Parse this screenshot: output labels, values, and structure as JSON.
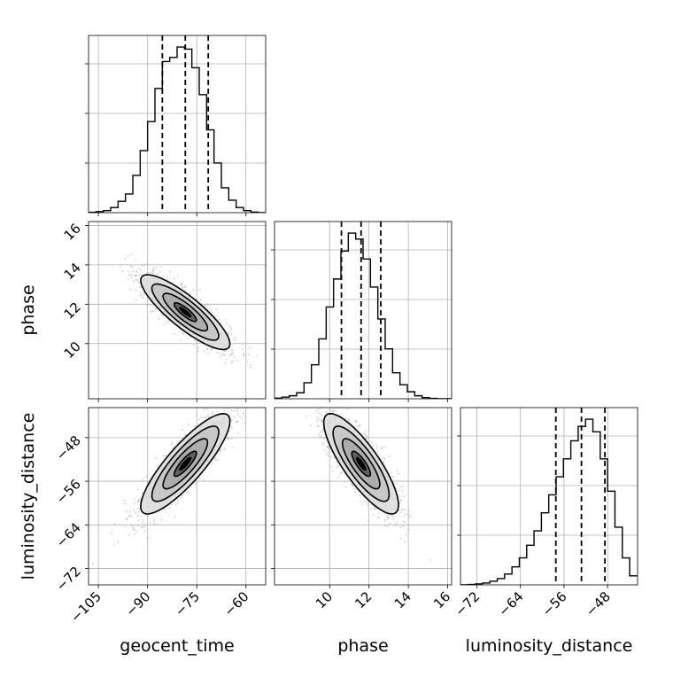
{
  "chart_data": {
    "type": "corner",
    "parameters": [
      "geocent_time",
      "phase",
      "luminosity_distance"
    ],
    "axis_labels": {
      "geocent_time": "geocent_time",
      "phase": "phase",
      "luminosity_distance": "luminosity_distance"
    },
    "ranges": {
      "geocent_time": [
        -108,
        -54
      ],
      "phase": [
        7.2,
        16.2
      ],
      "luminosity_distance": [
        -75,
        -42.5
      ]
    },
    "ticks": {
      "geocent_time": {
        "values": [
          -105,
          -90,
          -75,
          -60
        ],
        "labels": [
          "−105",
          "−90",
          "−75",
          "−60"
        ]
      },
      "phase": {
        "values": [
          10,
          12,
          14,
          16
        ],
        "labels": [
          "10",
          "12",
          "14",
          "16"
        ]
      },
      "luminosity_distance": {
        "values": [
          -72,
          -64,
          -56,
          -48
        ],
        "labels": [
          "−72",
          "−64",
          "−56",
          "−48"
        ]
      }
    },
    "grid": true,
    "histograms": {
      "geocent_time": {
        "bin_edges": [
          -108,
          -105.75,
          -103.5,
          -101.25,
          -99,
          -96.75,
          -94.5,
          -92.25,
          -90,
          -87.75,
          -85.5,
          -83.25,
          -81,
          -78.75,
          -76.5,
          -74.25,
          -72,
          -69.75,
          -67.5,
          -65.25,
          -63,
          -60.75,
          -58.5,
          -56.25,
          -54
        ],
        "counts": [
          0.2,
          0.5,
          1,
          2.5,
          5.5,
          9,
          18,
          30,
          44,
          60,
          73,
          75,
          80,
          79,
          70,
          57,
          40,
          24,
          12,
          6,
          2.5,
          1,
          0.3,
          0
        ],
        "quantiles": [
          -85.5,
          -78.5,
          -71.5
        ]
      },
      "phase": {
        "bin_edges": [
          7.2,
          7.575,
          7.95,
          8.325,
          8.7,
          9.075,
          9.45,
          9.825,
          10.2,
          10.575,
          10.95,
          11.325,
          11.7,
          12.075,
          12.45,
          12.825,
          13.2,
          13.575,
          13.95,
          14.325,
          14.7,
          15.075,
          15.45,
          15.825,
          16.2
        ],
        "counts": [
          0.3,
          0.8,
          1.5,
          3,
          8,
          17,
          30,
          46,
          60,
          74,
          83,
          80,
          70,
          56,
          40,
          25,
          13,
          7,
          3.5,
          1.5,
          0.6,
          0.2,
          0,
          0
        ],
        "quantiles": [
          10.6,
          11.6,
          12.6
        ]
      },
      "luminosity_distance": {
        "bin_edges": [
          -75,
          -73.65,
          -72.3,
          -70.95,
          -69.6,
          -68.25,
          -66.9,
          -65.55,
          -64.2,
          -62.85,
          -61.5,
          -60.15,
          -58.8,
          -57.45,
          -56.1,
          -54.75,
          -53.4,
          -52.05,
          -50.7,
          -49.35,
          -48,
          -46.65,
          -45.3,
          -43.95,
          -42.6
        ],
        "counts": [
          0,
          0.2,
          0.5,
          1,
          2,
          3.5,
          6,
          10,
          15,
          22,
          30,
          40,
          50,
          60,
          70,
          80,
          88,
          92,
          85,
          70,
          52,
          32,
          15,
          5
        ],
        "quantiles": [
          -57.5,
          -52.8,
          -48.5
        ]
      }
    },
    "joint": {
      "phase_vs_geocent_time": {
        "center": [
          -78.5,
          11.6
        ],
        "sigma": [
          6.8,
          0.95
        ],
        "correlation": -0.85,
        "contour_levels_sigma": [
          0.5,
          1,
          1.5,
          2
        ]
      },
      "luminosity_distance_vs_geocent_time": {
        "center": [
          -78.5,
          -52.8
        ],
        "sigma": [
          6.8,
          4.6
        ],
        "correlation": 0.85,
        "contour_levels_sigma": [
          0.5,
          1,
          1.5,
          2
        ]
      },
      "luminosity_distance_vs_phase": {
        "center": [
          11.6,
          -52.8
        ],
        "sigma": [
          0.95,
          4.6
        ],
        "correlation": -0.82,
        "contour_levels_sigma": [
          0.5,
          1,
          1.5,
          2
        ]
      }
    },
    "colors": {
      "line": "#000000",
      "quantile": "#000000",
      "scatter": "#9a9a9a",
      "grid": "#b0b0b0",
      "fill_light": "#dddddd",
      "fill_mid": "#a8a8a8",
      "fill_dark": "#555555",
      "fill_core": "#000000"
    }
  }
}
